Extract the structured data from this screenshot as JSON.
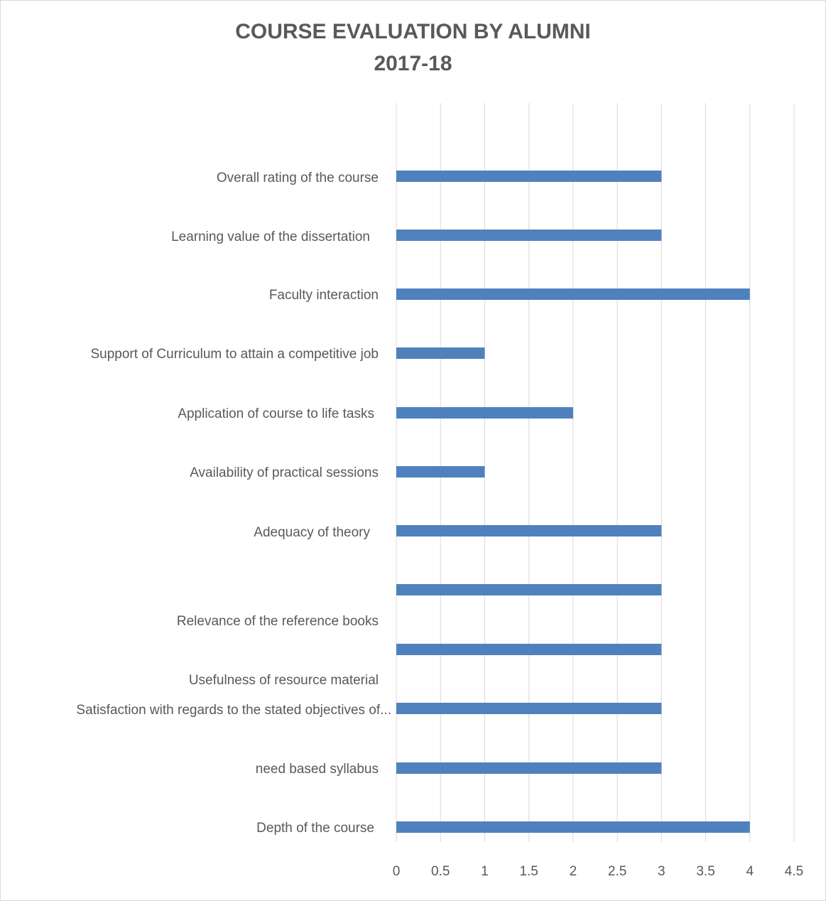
{
  "chart_data": {
    "type": "bar",
    "orientation": "horizontal",
    "title": "COURSE EVALUATION BY ALUMNI",
    "subtitle": "2017-18",
    "categories": [
      "Overall rating of the course",
      "Learning value of the dissertation",
      "Faculty interaction",
      "Support of Curriculum to attain a competitive job",
      "Application of course to life tasks",
      "Availability of practical sessions",
      "Adequacy of  theory",
      "Relevance of the reference books",
      "Usefulness of resource material",
      "Satisfaction with regards to the stated objectives of...",
      "need based syllabus",
      "Depth of the course"
    ],
    "values": [
      3,
      3,
      4,
      1,
      2,
      1,
      3,
      3,
      3,
      3,
      3,
      4
    ],
    "xlim": [
      0,
      4.5
    ],
    "xticks": [
      "0",
      "0.5",
      "1",
      "1.5",
      "2",
      "2.5",
      "3",
      "3.5",
      "4",
      "4.5"
    ],
    "grid": true,
    "bar_color": "#4f81bd"
  }
}
